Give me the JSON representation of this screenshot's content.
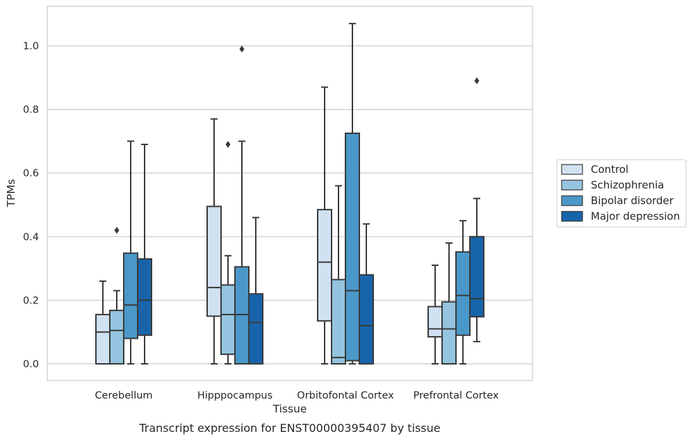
{
  "chart_data": {
    "type": "box",
    "caption": "Transcript expression for ENST00000395407 by tissue",
    "xlabel": "Tissue",
    "ylabel": "TPMs",
    "ylim": [
      -0.05,
      1.13
    ],
    "yticks": [
      0.0,
      0.2,
      0.4,
      0.6,
      0.8,
      1.0
    ],
    "ytick_labels": [
      "0.0",
      "0.2",
      "0.4",
      "0.6",
      "0.8",
      "1.0"
    ],
    "grid": "horizontal",
    "legend_position": "right",
    "categories": [
      "Cerebellum",
      "Hipppocampus",
      "Orbitofontal Cortex",
      "Prefrontal Cortex"
    ],
    "series": [
      {
        "name": "Control",
        "color": "#d0e1f2",
        "boxes": [
          {
            "whislo": 0.0,
            "q1": 0.0,
            "med": 0.1,
            "q3": 0.155,
            "whishi": 0.26,
            "fliers": []
          },
          {
            "whislo": 0.0,
            "q1": 0.15,
            "med": 0.24,
            "q3": 0.495,
            "whishi": 0.77,
            "fliers": []
          },
          {
            "whislo": 0.0,
            "q1": 0.135,
            "med": 0.32,
            "q3": 0.485,
            "whishi": 0.87,
            "fliers": []
          },
          {
            "whislo": 0.0,
            "q1": 0.085,
            "med": 0.11,
            "q3": 0.18,
            "whishi": 0.31,
            "fliers": []
          }
        ]
      },
      {
        "name": "Schizophrenia",
        "color": "#94c4df",
        "boxes": [
          {
            "whislo": 0.0,
            "q1": 0.0,
            "med": 0.105,
            "q3": 0.168,
            "whishi": 0.23,
            "fliers": [
              0.42
            ]
          },
          {
            "whislo": 0.0,
            "q1": 0.03,
            "med": 0.155,
            "q3": 0.248,
            "whishi": 0.34,
            "fliers": [
              0.69
            ]
          },
          {
            "whislo": 0.0,
            "q1": 0.0,
            "med": 0.02,
            "q3": 0.265,
            "whishi": 0.56,
            "fliers": []
          },
          {
            "whislo": 0.0,
            "q1": 0.0,
            "med": 0.11,
            "q3": 0.195,
            "whishi": 0.38,
            "fliers": []
          }
        ]
      },
      {
        "name": "Bipolar disorder",
        "color": "#4a98c9",
        "boxes": [
          {
            "whislo": 0.0,
            "q1": 0.08,
            "med": 0.185,
            "q3": 0.348,
            "whishi": 0.7,
            "fliers": []
          },
          {
            "whislo": 0.0,
            "q1": 0.0,
            "med": 0.155,
            "q3": 0.305,
            "whishi": 0.7,
            "fliers": [
              0.99
            ]
          },
          {
            "whislo": 0.0,
            "q1": 0.01,
            "med": 0.23,
            "q3": 0.725,
            "whishi": 1.07,
            "fliers": []
          },
          {
            "whislo": 0.0,
            "q1": 0.09,
            "med": 0.215,
            "q3": 0.352,
            "whishi": 0.45,
            "fliers": []
          }
        ]
      },
      {
        "name": "Major depression",
        "color": "#1764ab",
        "boxes": [
          {
            "whislo": 0.0,
            "q1": 0.09,
            "med": 0.2,
            "q3": 0.33,
            "whishi": 0.69,
            "fliers": []
          },
          {
            "whislo": 0.0,
            "q1": 0.0,
            "med": 0.13,
            "q3": 0.22,
            "whishi": 0.46,
            "fliers": []
          },
          {
            "whislo": 0.0,
            "q1": 0.0,
            "med": 0.12,
            "q3": 0.28,
            "whishi": 0.44,
            "fliers": []
          },
          {
            "whislo": 0.07,
            "q1": 0.148,
            "med": 0.205,
            "q3": 0.4,
            "whishi": 0.52,
            "fliers": [
              0.89
            ]
          }
        ]
      }
    ]
  }
}
